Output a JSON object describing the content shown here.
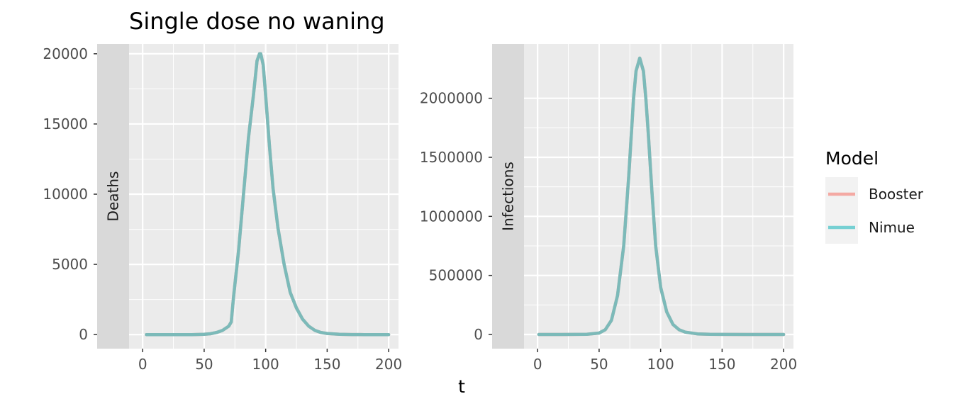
{
  "title": "Single dose no waning",
  "shared_xlabel": "t",
  "legend": {
    "title": "Model",
    "items": [
      {
        "label": "Booster",
        "color": "#F4A9A3"
      },
      {
        "label": "Nimue",
        "color": "#76D0D3"
      }
    ]
  },
  "colors": {
    "panel_bg": "#EBEBEB",
    "strip_bg": "#D9D9D9",
    "grid": "#FFFFFF",
    "line_overlap": "#7CBAB9",
    "tick_text": "#4D4D4D"
  },
  "chart_data": [
    {
      "type": "line",
      "strip_label": "Deaths",
      "xlabel": "t",
      "ylabel": "",
      "xlim": [
        -37,
        208
      ],
      "ylim": [
        -1000,
        20700
      ],
      "x_ticks": [
        0,
        50,
        100,
        150,
        200
      ],
      "x_tick_labels": [
        "0",
        "50",
        "100",
        "150",
        "200"
      ],
      "y_ticks": [
        0,
        5000,
        10000,
        15000,
        20000
      ],
      "y_tick_labels": [
        "0",
        "5000",
        "10000",
        "15000",
        "20000"
      ],
      "grid": true,
      "series": [
        {
          "name": "Nimue",
          "x": [
            3,
            20,
            40,
            50,
            55,
            60,
            65,
            70,
            72,
            74,
            78,
            82,
            86,
            90,
            93,
            95,
            96,
            98,
            100,
            103,
            106,
            110,
            115,
            120,
            125,
            130,
            135,
            140,
            145,
            150,
            160,
            170,
            180,
            190,
            200
          ],
          "y": [
            0,
            0,
            0,
            20,
            60,
            150,
            300,
            600,
            900,
            2800,
            6000,
            10000,
            14000,
            17000,
            19500,
            20000,
            20000,
            19200,
            17000,
            13500,
            10400,
            7600,
            5000,
            3000,
            1900,
            1100,
            600,
            300,
            150,
            80,
            20,
            5,
            0,
            0,
            0
          ]
        },
        {
          "name": "Booster",
          "x": [
            3,
            20,
            40,
            50,
            55,
            60,
            65,
            70,
            72,
            74,
            78,
            82,
            86,
            90,
            93,
            95,
            96,
            98,
            100,
            103,
            106,
            110,
            115,
            120,
            125,
            130,
            135,
            140,
            145,
            150,
            160,
            170,
            180,
            190,
            200
          ],
          "y": [
            0,
            0,
            0,
            20,
            60,
            150,
            300,
            600,
            900,
            2800,
            6000,
            10000,
            14000,
            17000,
            19500,
            20000,
            20000,
            19200,
            17000,
            13500,
            10400,
            7600,
            5000,
            3000,
            1900,
            1100,
            600,
            300,
            150,
            80,
            20,
            5,
            0,
            0,
            0
          ]
        }
      ]
    },
    {
      "type": "line",
      "strip_label": "Infections",
      "xlabel": "t",
      "ylabel": "",
      "xlim": [
        -37,
        208
      ],
      "ylim": [
        -120000,
        2460000
      ],
      "x_ticks": [
        0,
        50,
        100,
        150,
        200
      ],
      "x_tick_labels": [
        "0",
        "50",
        "100",
        "150",
        "200"
      ],
      "y_ticks": [
        0,
        500000,
        1000000,
        1500000,
        2000000
      ],
      "y_tick_labels": [
        "0",
        "500000",
        "1000000",
        "1500000",
        "2000000"
      ],
      "grid": true,
      "series": [
        {
          "name": "Nimue",
          "x": [
            1,
            20,
            40,
            50,
            55,
            60,
            65,
            70,
            74,
            78,
            80,
            83,
            86,
            88,
            90,
            93,
            96,
            100,
            105,
            110,
            115,
            120,
            130,
            140,
            150,
            170,
            200
          ],
          "y": [
            0,
            0,
            2000,
            12000,
            40000,
            120000,
            330000,
            750000,
            1330000,
            2000000,
            2230000,
            2340000,
            2230000,
            2000000,
            1700000,
            1200000,
            750000,
            400000,
            190000,
            85000,
            40000,
            20000,
            5000,
            1500,
            500,
            0,
            0
          ]
        },
        {
          "name": "Booster",
          "x": [
            1,
            20,
            40,
            50,
            55,
            60,
            65,
            70,
            74,
            78,
            80,
            83,
            86,
            88,
            90,
            93,
            96,
            100,
            105,
            110,
            115,
            120,
            130,
            140,
            150,
            170,
            200
          ],
          "y": [
            0,
            0,
            2000,
            12000,
            40000,
            120000,
            330000,
            750000,
            1330000,
            2000000,
            2230000,
            2340000,
            2230000,
            2000000,
            1700000,
            1200000,
            750000,
            400000,
            190000,
            85000,
            40000,
            20000,
            5000,
            1500,
            500,
            0,
            0
          ]
        }
      ]
    }
  ]
}
